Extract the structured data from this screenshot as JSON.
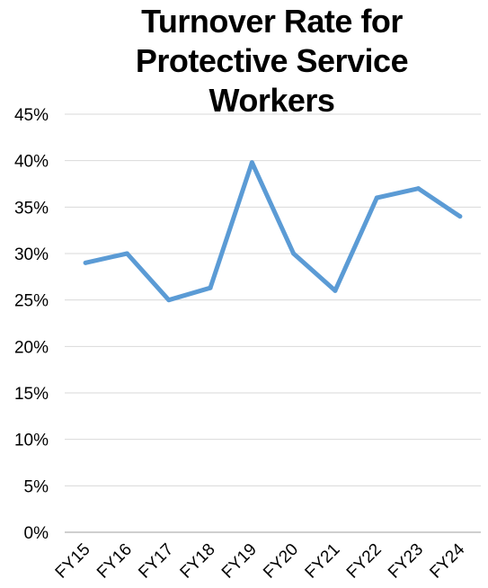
{
  "chart_data": {
    "type": "line",
    "title": "Turnover Rate for\nProtective Service\nWorkers",
    "xlabel": "",
    "ylabel": "",
    "categories": [
      "FY15",
      "FY16",
      "FY17",
      "FY18",
      "FY19",
      "FY20",
      "FY21",
      "FY22",
      "FY23",
      "FY24"
    ],
    "series": [
      {
        "values": [
          29,
          30,
          25,
          26.3,
          39.8,
          30,
          26,
          36,
          37,
          34
        ]
      }
    ],
    "ylim": [
      0,
      45
    ],
    "yticks": [
      0,
      5,
      10,
      15,
      20,
      25,
      30,
      35,
      40,
      45
    ],
    "ytick_labels": [
      "0%",
      "5%",
      "10%",
      "15%",
      "20%",
      "25%",
      "30%",
      "35%",
      "40%",
      "45%"
    ],
    "grid": true,
    "legend": "none",
    "colors": {
      "line": "#5B9BD5",
      "grid": "#D9D9D9",
      "axis": "#BFBFBF"
    }
  }
}
